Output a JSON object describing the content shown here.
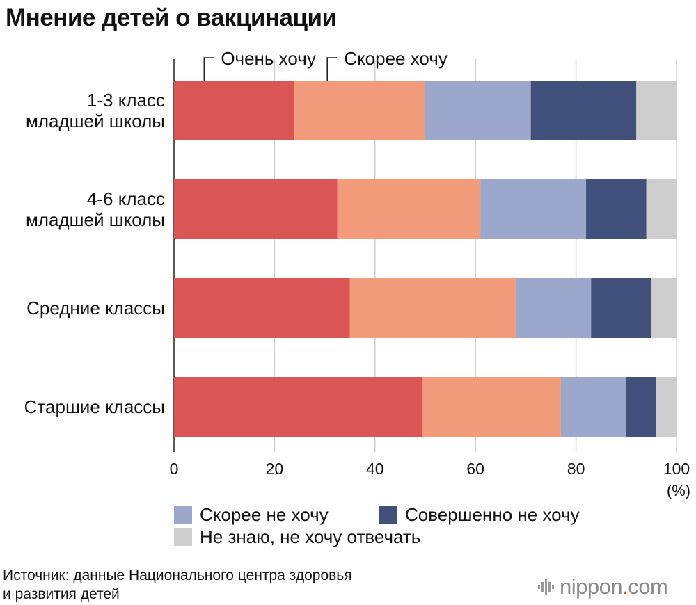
{
  "title": "Мнение детей о вакцинации",
  "source_lines": [
    "Источник: данные Национального центра здоровья",
    "и развития детей"
  ],
  "logo": {
    "name": "nippon",
    "dot": ".",
    "suffix": "com"
  },
  "chart_data": {
    "type": "bar",
    "orientation": "horizontal",
    "stacked": true,
    "categories": [
      [
        "1-3 класс",
        "младшей школы"
      ],
      [
        "4-6 класс",
        "младшей школы"
      ],
      [
        "Средние классы"
      ],
      [
        "Старшие классы"
      ]
    ],
    "series": [
      {
        "name": "Очень хочу",
        "color": "#d95556",
        "values": [
          24,
          32.5,
          35,
          49.5
        ]
      },
      {
        "name": "Скорее хочу",
        "color": "#f29b7a",
        "values": [
          26,
          28.5,
          33,
          27.5
        ]
      },
      {
        "name": "Скорее не хочу",
        "color": "#9ba8cb",
        "values": [
          21,
          21,
          15,
          13
        ]
      },
      {
        "name": "Совершенно не хочу",
        "color": "#41507b",
        "values": [
          21,
          12,
          12,
          6
        ]
      },
      {
        "name": "Не знаю, не хочу отвечать",
        "color": "#cdcdcd",
        "values": [
          8,
          6,
          5,
          4
        ]
      }
    ],
    "xlim": [
      0,
      100
    ],
    "xticks": [
      0,
      20,
      40,
      60,
      80,
      100
    ],
    "xunit": "(%)",
    "grid": "vertical",
    "legend_top": [
      "Очень хочу",
      "Скорее хочу"
    ],
    "legend_bottom": [
      "Скорее не хочу",
      "Совершенно не хочу",
      "Не знаю, не хочу отвечать"
    ]
  }
}
